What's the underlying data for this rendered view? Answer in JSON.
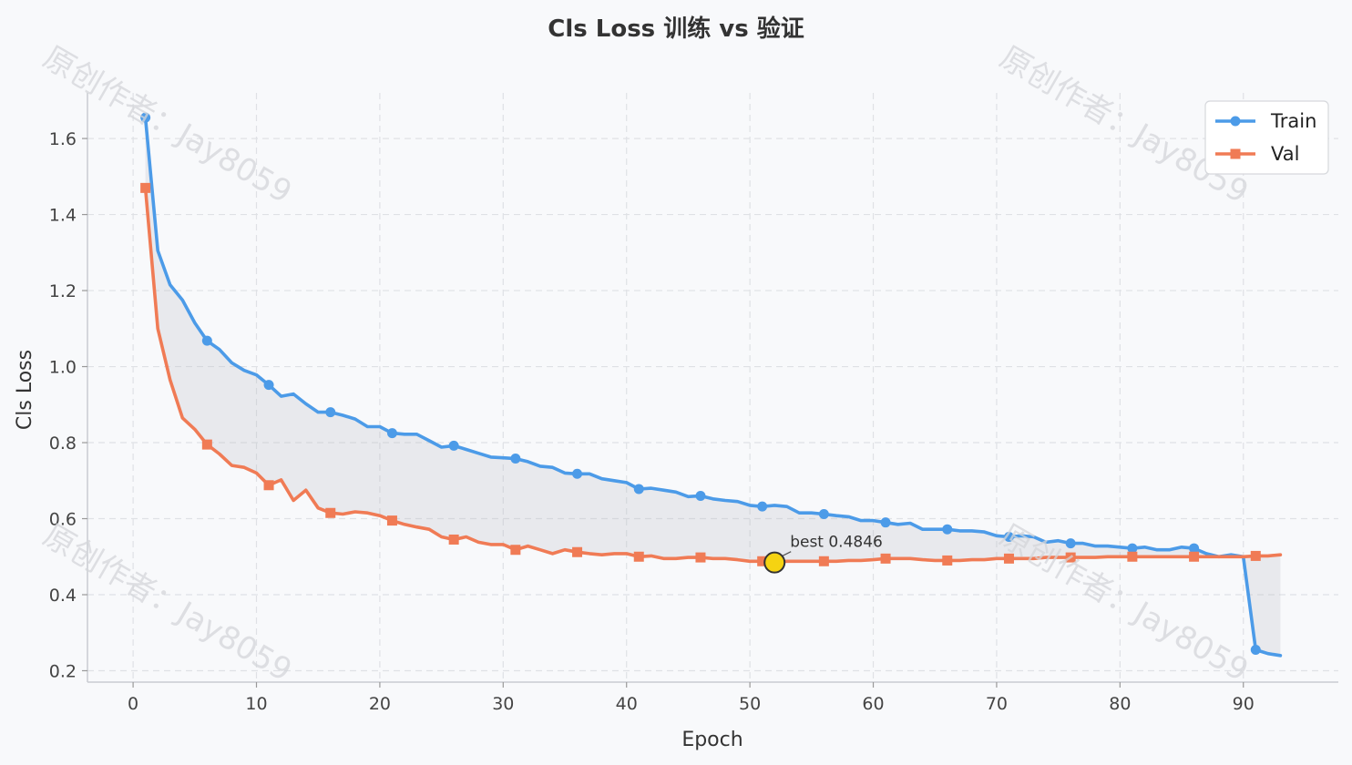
{
  "watermark": "原创作者：Jay8059",
  "chart_data": {
    "type": "line",
    "title": "Cls Loss 训练 vs 验证",
    "xlabel": "Epoch",
    "ylabel": "Cls Loss",
    "xlim": [
      -3.7,
      97.7
    ],
    "ylim": [
      0.17,
      1.72
    ],
    "xticks": [
      0,
      10,
      20,
      30,
      40,
      50,
      60,
      70,
      80,
      90
    ],
    "yticks": [
      0.2,
      0.4,
      0.6,
      0.8,
      1.0,
      1.2,
      1.4,
      1.6
    ],
    "grid": true,
    "legend_position": "top-right",
    "fill_between": true,
    "x": [
      1,
      2,
      3,
      4,
      5,
      6,
      7,
      8,
      9,
      10,
      11,
      12,
      13,
      14,
      15,
      16,
      17,
      18,
      19,
      20,
      21,
      22,
      23,
      24,
      25,
      26,
      27,
      28,
      29,
      30,
      31,
      32,
      33,
      34,
      35,
      36,
      37,
      38,
      39,
      40,
      41,
      42,
      43,
      44,
      45,
      46,
      47,
      48,
      49,
      50,
      51,
      52,
      53,
      54,
      55,
      56,
      57,
      58,
      59,
      60,
      61,
      62,
      63,
      64,
      65,
      66,
      67,
      68,
      69,
      70,
      71,
      72,
      73,
      74,
      75,
      76,
      77,
      78,
      79,
      80,
      81,
      82,
      83,
      84,
      85,
      86,
      87,
      88,
      89,
      90,
      91,
      92,
      93
    ],
    "series": [
      {
        "name": "Train",
        "color": "#4c9be8",
        "marker": "circle",
        "marker_every": 5,
        "values": [
          1.655,
          1.305,
          1.215,
          1.175,
          1.115,
          1.068,
          1.045,
          1.01,
          0.99,
          0.978,
          0.952,
          0.922,
          0.928,
          0.902,
          0.88,
          0.88,
          0.872,
          0.862,
          0.842,
          0.842,
          0.825,
          0.822,
          0.822,
          0.805,
          0.788,
          0.792,
          0.782,
          0.772,
          0.762,
          0.76,
          0.758,
          0.75,
          0.738,
          0.735,
          0.72,
          0.718,
          0.718,
          0.705,
          0.7,
          0.695,
          0.678,
          0.68,
          0.675,
          0.67,
          0.658,
          0.66,
          0.652,
          0.648,
          0.645,
          0.635,
          0.632,
          0.635,
          0.632,
          0.615,
          0.615,
          0.612,
          0.608,
          0.605,
          0.595,
          0.595,
          0.59,
          0.585,
          0.588,
          0.572,
          0.572,
          0.572,
          0.568,
          0.568,
          0.565,
          0.555,
          0.552,
          0.555,
          0.552,
          0.538,
          0.542,
          0.535,
          0.535,
          0.528,
          0.528,
          0.525,
          0.522,
          0.525,
          0.518,
          0.518,
          0.525,
          0.522,
          0.508,
          0.5,
          0.505,
          0.5,
          0.255,
          0.245,
          0.24
        ]
      },
      {
        "name": "Val",
        "color": "#f07b55",
        "marker": "square",
        "marker_every": 5,
        "values": [
          1.47,
          1.1,
          0.965,
          0.865,
          0.835,
          0.795,
          0.77,
          0.74,
          0.735,
          0.72,
          0.688,
          0.702,
          0.648,
          0.675,
          0.628,
          0.615,
          0.612,
          0.618,
          0.615,
          0.608,
          0.595,
          0.585,
          0.578,
          0.572,
          0.552,
          0.545,
          0.552,
          0.538,
          0.532,
          0.532,
          0.518,
          0.528,
          0.518,
          0.508,
          0.518,
          0.512,
          0.508,
          0.505,
          0.508,
          0.508,
          0.5,
          0.502,
          0.495,
          0.495,
          0.498,
          0.498,
          0.495,
          0.495,
          0.492,
          0.488,
          0.488,
          0.4846,
          0.488,
          0.488,
          0.488,
          0.488,
          0.488,
          0.49,
          0.49,
          0.492,
          0.495,
          0.495,
          0.495,
          0.492,
          0.49,
          0.49,
          0.49,
          0.492,
          0.492,
          0.495,
          0.495,
          0.495,
          0.495,
          0.498,
          0.498,
          0.498,
          0.498,
          0.498,
          0.5,
          0.5,
          0.5,
          0.5,
          0.5,
          0.5,
          0.5,
          0.5,
          0.5,
          0.5,
          0.5,
          0.5,
          0.502,
          0.502,
          0.505
        ]
      }
    ],
    "annotations": [
      {
        "text": "best 0.4846",
        "x": 52,
        "y": 0.4846,
        "marker_color": "#f5d312"
      }
    ]
  }
}
